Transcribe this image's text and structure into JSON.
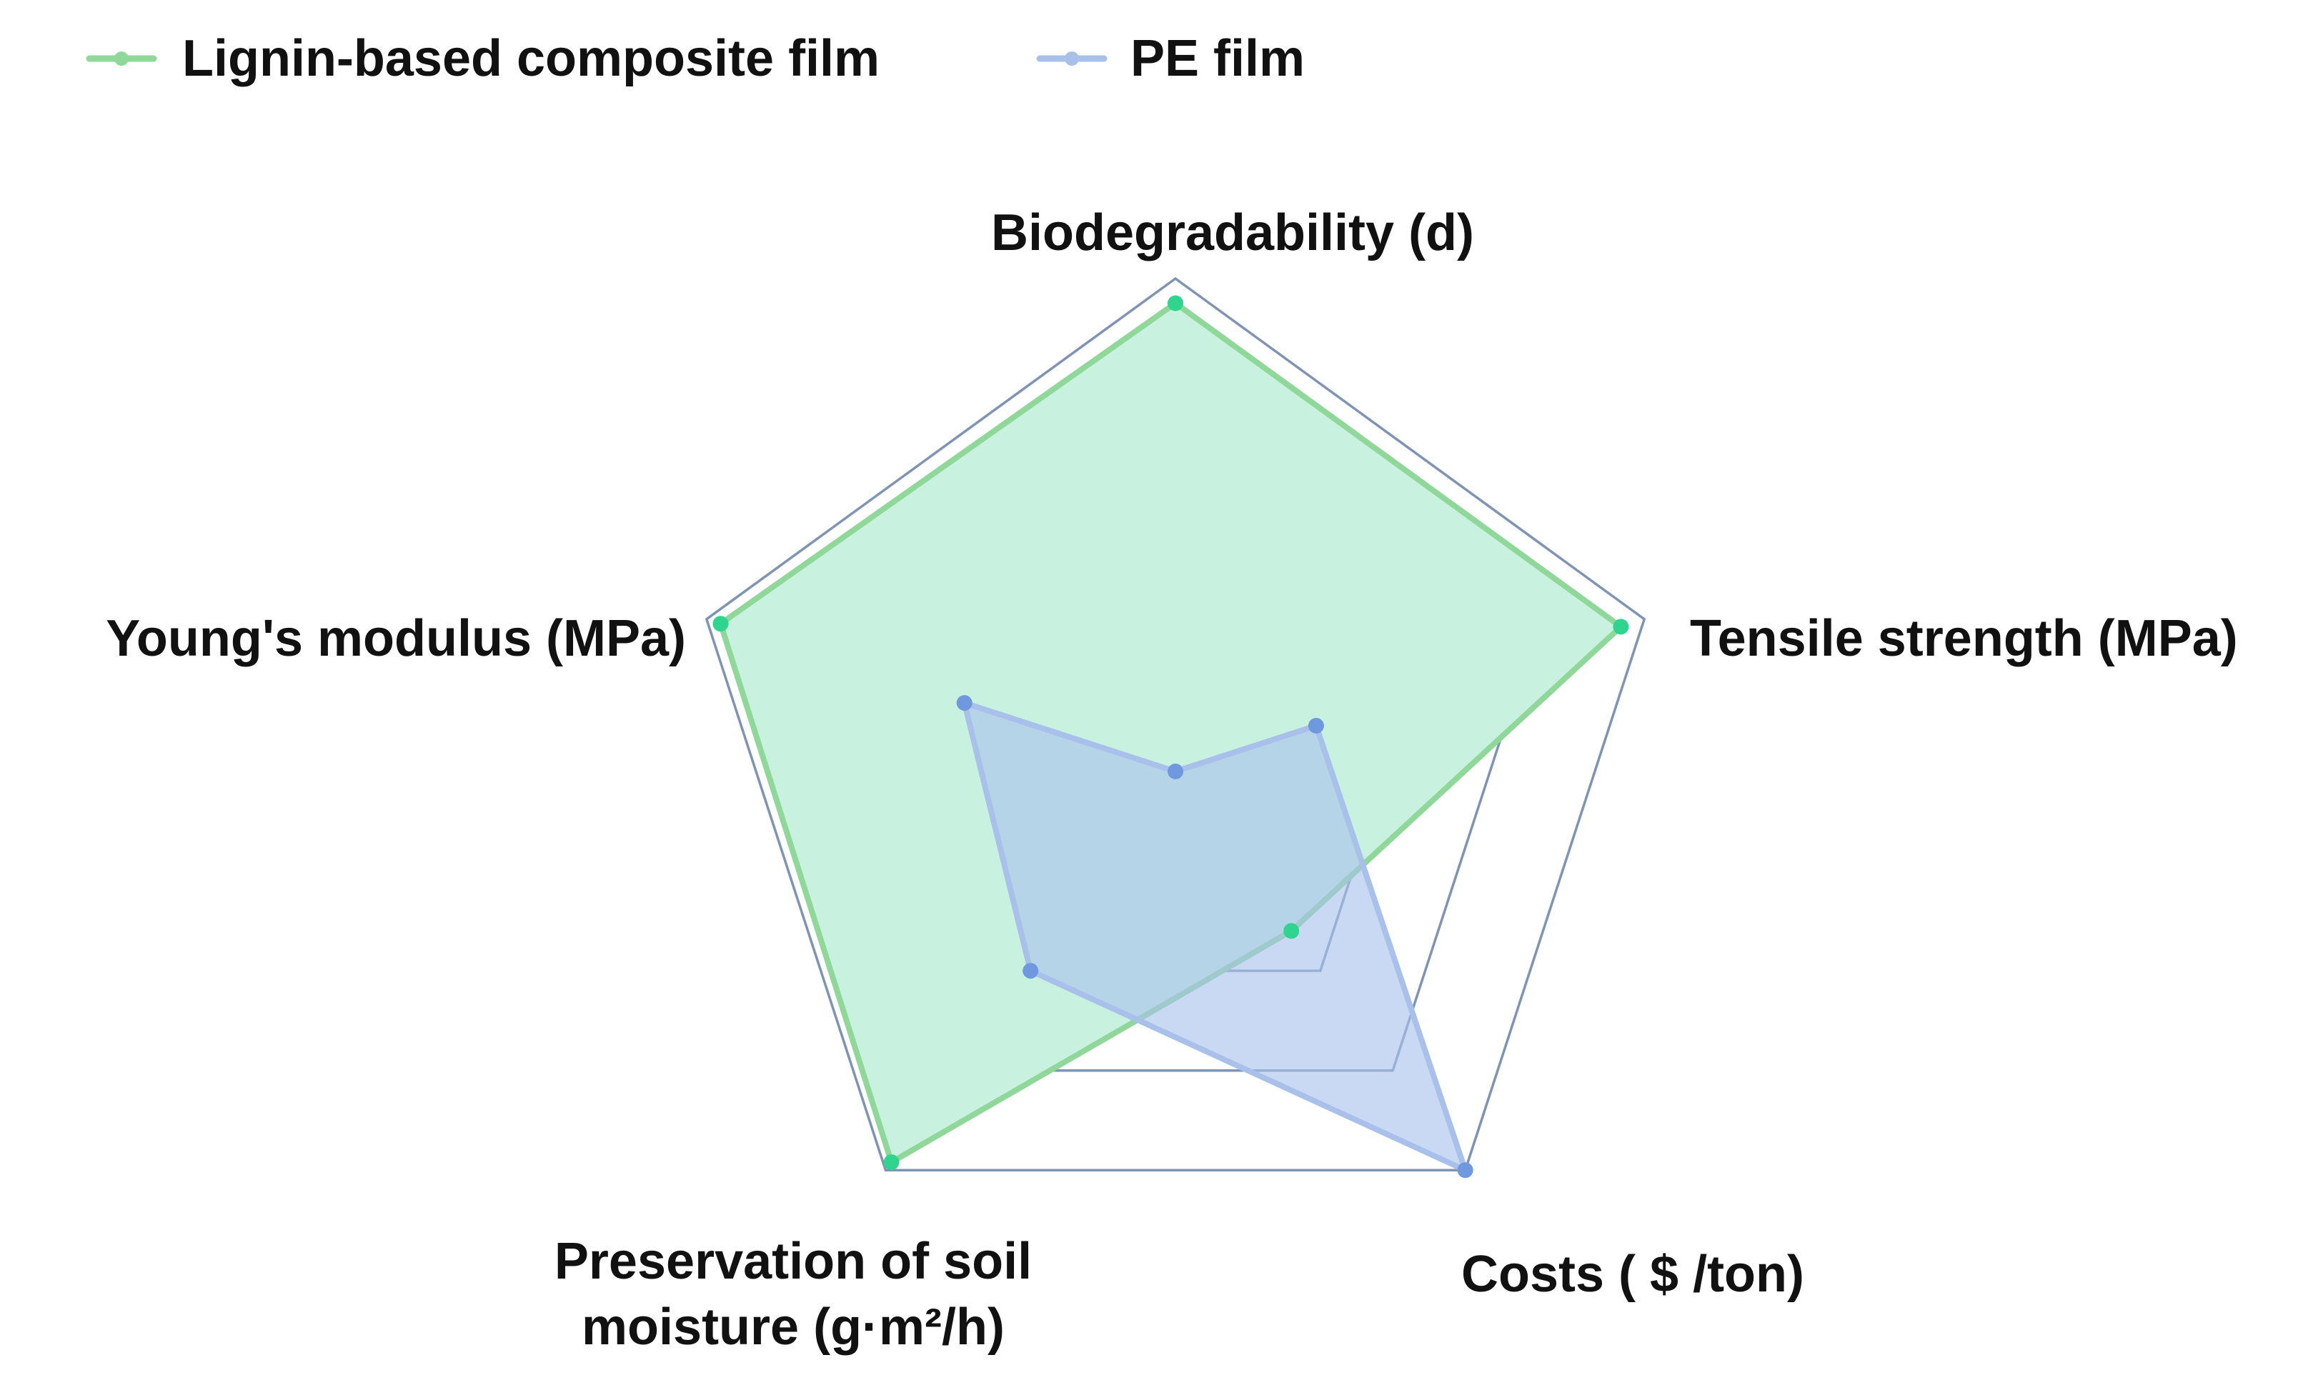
{
  "chart_data": {
    "type": "radar",
    "axes": [
      "Biodegradability (d)",
      "Tensile strength (MPa)",
      "Costs ( $ /ton)",
      "Preservation of soil moisture (g·m²/h)",
      "Young's modulus (MPa)"
    ],
    "axis_label_lines": [
      [
        "Biodegradability (d)"
      ],
      [
        "Tensile strength (MPa)"
      ],
      [
        "Costs ( $ /ton)"
      ],
      [
        "Preservation of soil",
        "moisture (g·m²/h)"
      ],
      [
        "Young's modulus (MPa)"
      ]
    ],
    "range": [
      0,
      4
    ],
    "grid_levels": [
      0.25,
      0.5,
      0.75,
      1.0
    ],
    "grid": true,
    "legend_position": "top-left",
    "series": [
      {
        "name": "Lignin-based composite film",
        "values": [
          0.95,
          0.95,
          0.4,
          0.98,
          0.97
        ],
        "color": "#2fd58f",
        "legend_color": "#8fd89a",
        "fill": "#c8f2df"
      },
      {
        "name": "PE film",
        "values": [
          0.0,
          0.3,
          1.0,
          0.5,
          0.45
        ],
        "color": "#6f98de",
        "legend_color": "#a8c0ea",
        "fill": "#a9c2ec"
      }
    ],
    "grid_color": "#7f93b3"
  }
}
